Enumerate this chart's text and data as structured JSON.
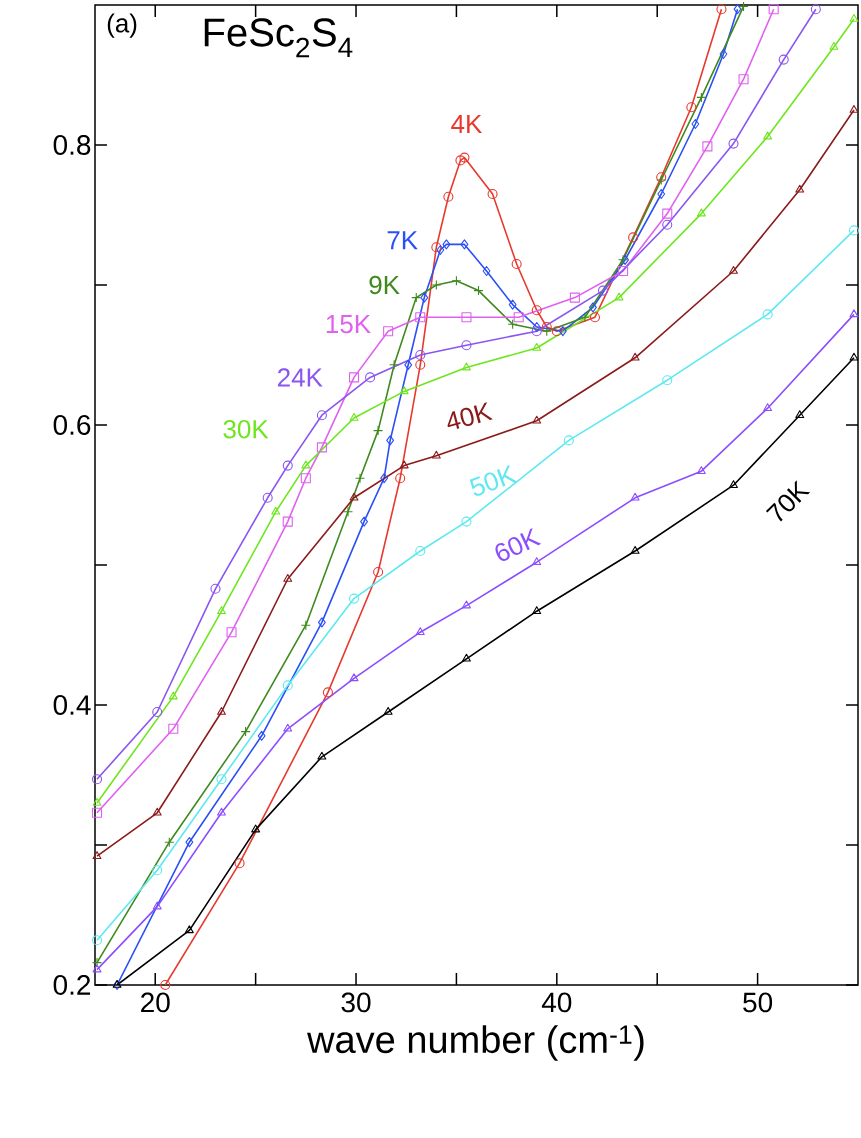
{
  "chart_data": {
    "type": "line",
    "title": "FeSc$_{2}$S$_{4}$",
    "annotations": [
      "(a)"
    ],
    "xlabel": "wave number (cm$^{-1}$)",
    "xlim": [
      17,
      55
    ],
    "ylim": [
      0.2,
      0.9
    ],
    "xticks": [
      20,
      {
        "value": 25,
        "label": null
      },
      30,
      {
        "value": 35,
        "label": null
      },
      40,
      {
        "value": 45,
        "label": null
      },
      50
    ],
    "yticks": [
      0.2,
      {
        "value": 0.3,
        "label": null
      },
      0.4,
      {
        "value": 0.5,
        "label": null
      },
      0.6,
      {
        "value": 0.7,
        "label": null
      },
      0.8
    ],
    "series": [
      {
        "name": "4K",
        "color": "#e8392f",
        "marker": "circle",
        "x": [
          20.5,
          24.2,
          28.6,
          31.1,
          32.2,
          33.2,
          34.0,
          34.6,
          35.2,
          35.4,
          36.8,
          38.0,
          39.0,
          39.5,
          40.0,
          41.9,
          43.8,
          45.2,
          46.7,
          48.2
        ],
        "values": [
          0.2,
          0.287,
          0.409,
          0.495,
          0.562,
          0.643,
          0.727,
          0.763,
          0.789,
          0.791,
          0.765,
          0.715,
          0.682,
          0.67,
          0.667,
          0.677,
          0.734,
          0.777,
          0.827,
          0.897
        ]
      },
      {
        "name": "7K",
        "color": "#2a4ff5",
        "marker": "diamond",
        "x": [
          18.1,
          21.7,
          25.3,
          28.3,
          30.4,
          31.4,
          31.7,
          32.6,
          33.4,
          34.2,
          34.5,
          35.4,
          36.5,
          37.8,
          39.0,
          40.3,
          41.8,
          43.4,
          45.2,
          46.9,
          48.3,
          49.0
        ],
        "values": [
          0.2,
          0.302,
          0.378,
          0.459,
          0.531,
          0.562,
          0.589,
          0.643,
          0.691,
          0.725,
          0.729,
          0.729,
          0.71,
          0.686,
          0.67,
          0.667,
          0.684,
          0.718,
          0.765,
          0.815,
          0.865,
          0.897
        ]
      },
      {
        "name": "9K",
        "color": "#3f8a1e",
        "marker": "cross",
        "x": [
          17.1,
          20.7,
          24.5,
          27.5,
          29.6,
          30.2,
          31.1,
          31.9,
          33.0,
          34.0,
          35.0,
          36.1,
          37.8,
          39.5,
          41.4,
          43.3,
          45.2,
          47.2,
          49.3
        ],
        "values": [
          0.216,
          0.302,
          0.381,
          0.457,
          0.538,
          0.562,
          0.596,
          0.643,
          0.691,
          0.7,
          0.703,
          0.696,
          0.672,
          0.667,
          0.677,
          0.718,
          0.775,
          0.834,
          0.899
        ]
      },
      {
        "name": "15K",
        "color": "#e060f0",
        "marker": "square",
        "x": [
          17.1,
          20.9,
          23.8,
          26.6,
          27.5,
          28.3,
          29.9,
          31.6,
          33.2,
          35.5,
          38.1,
          40.9,
          43.3,
          45.5,
          47.5,
          49.3,
          50.8
        ],
        "values": [
          0.323,
          0.383,
          0.452,
          0.531,
          0.562,
          0.584,
          0.634,
          0.667,
          0.677,
          0.677,
          0.677,
          0.691,
          0.71,
          0.751,
          0.799,
          0.847,
          0.897
        ]
      },
      {
        "name": "24K",
        "color": "#8a55f0",
        "marker": "circle",
        "x": [
          17.1,
          20.1,
          23.0,
          25.6,
          26.6,
          28.3,
          30.7,
          33.2,
          35.5,
          39.0,
          42.3,
          45.5,
          48.8,
          51.3,
          52.9
        ],
        "values": [
          0.347,
          0.395,
          0.483,
          0.548,
          0.571,
          0.607,
          0.634,
          0.65,
          0.657,
          0.667,
          0.696,
          0.743,
          0.801,
          0.861,
          0.897
        ]
      },
      {
        "name": "30K",
        "color": "#6ee61e",
        "marker": "triangle",
        "x": [
          17.1,
          20.9,
          23.3,
          26.0,
          27.5,
          29.9,
          32.4,
          35.5,
          39.0,
          43.1,
          47.2,
          50.5,
          53.8,
          54.8
        ],
        "values": [
          0.33,
          0.406,
          0.467,
          0.538,
          0.571,
          0.605,
          0.624,
          0.641,
          0.655,
          0.691,
          0.751,
          0.806,
          0.87,
          0.89
        ]
      },
      {
        "name": "40K",
        "color": "#8b1a1a",
        "marker": "triangle",
        "x": [
          17.1,
          20.1,
          23.3,
          26.6,
          29.9,
          32.4,
          34.0,
          39.0,
          43.9,
          48.8,
          52.1,
          54.8
        ],
        "values": [
          0.292,
          0.323,
          0.395,
          0.49,
          0.548,
          0.571,
          0.578,
          0.603,
          0.648,
          0.71,
          0.768,
          0.825
        ]
      },
      {
        "name": "50K",
        "color": "#5ee8f0",
        "marker": "circle",
        "x": [
          17.1,
          20.1,
          23.3,
          26.6,
          29.9,
          33.2,
          35.5,
          40.6,
          45.5,
          50.5,
          54.8
        ],
        "values": [
          0.232,
          0.282,
          0.347,
          0.414,
          0.476,
          0.51,
          0.531,
          0.589,
          0.632,
          0.679,
          0.739
        ]
      },
      {
        "name": "60K",
        "color": "#8c4dff",
        "marker": "triangle",
        "x": [
          17.1,
          20.1,
          23.3,
          26.6,
          29.9,
          33.2,
          35.5,
          39.0,
          43.9,
          47.2,
          50.5,
          54.8
        ],
        "values": [
          0.211,
          0.256,
          0.323,
          0.383,
          0.419,
          0.452,
          0.471,
          0.502,
          0.548,
          0.567,
          0.612,
          0.679
        ]
      },
      {
        "name": "70K",
        "color": "#000000",
        "marker": "triangle",
        "x": [
          18.1,
          21.7,
          25.0,
          28.3,
          31.6,
          35.5,
          39.0,
          43.9,
          48.8,
          52.1,
          54.8
        ],
        "values": [
          0.2,
          0.239,
          0.311,
          0.363,
          0.395,
          0.433,
          0.467,
          0.51,
          0.557,
          0.607,
          0.648
        ]
      }
    ]
  }
}
